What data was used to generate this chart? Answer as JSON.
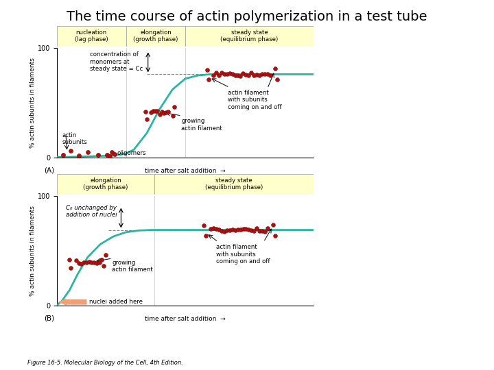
{
  "title": "The time course of actin polymerization in a test tube",
  "title_fontsize": 14,
  "title_fontweight": "normal",
  "background_color": "#ffffff",
  "curve_color": "#2ab5a0",
  "curve_linewidth": 2.0,
  "dot_color": "#aa1111",
  "yellow_bg": "#ffffcc",
  "dashed_color": "#888888",
  "salmon_color": "#f4a070",
  "panel_A": {
    "phases_A": [
      {
        "label": "nucleation\n(lag phase)",
        "xstart": 0.0,
        "xend": 0.27
      },
      {
        "label": "elongation\n(growth phase)",
        "xstart": 0.27,
        "xend": 0.5
      },
      {
        "label": "steady state\n(equilibrium phase)",
        "xstart": 0.5,
        "xend": 1.0
      }
    ],
    "curve_x": [
      0.0,
      0.05,
      0.1,
      0.15,
      0.2,
      0.25,
      0.27,
      0.3,
      0.35,
      0.4,
      0.45,
      0.5,
      0.55,
      0.6,
      0.7,
      0.8,
      1.0
    ],
    "curve_y": [
      0.0,
      0.3,
      0.6,
      1.0,
      1.5,
      2.5,
      3.5,
      7.0,
      22.0,
      44.0,
      62.0,
      72.0,
      75.0,
      76.0,
      76.0,
      76.0,
      76.0
    ],
    "Cc_level": 76.0,
    "ylabel": "% actin subunits in filaments",
    "xlabel": "time after salt addition"
  },
  "panel_B": {
    "phases_B": [
      {
        "label": "elongation\n(growth phase)",
        "xstart": 0.0,
        "xend": 0.38
      },
      {
        "label": "steady state\n(equilibrium phase)",
        "xstart": 0.38,
        "xend": 1.0
      }
    ],
    "curve_x": [
      0.0,
      0.02,
      0.05,
      0.08,
      0.12,
      0.17,
      0.22,
      0.27,
      0.32,
      0.37,
      0.42,
      0.47,
      0.55,
      0.7,
      0.85,
      1.0
    ],
    "curve_y": [
      0.0,
      4.0,
      14.0,
      28.0,
      44.0,
      56.0,
      63.0,
      67.0,
      68.5,
      69.0,
      69.0,
      69.0,
      69.0,
      69.0,
      69.0,
      69.0
    ],
    "Cc_level": 69.0,
    "ylabel": "% actin subunits in filaments",
    "xlabel": "time after salt addition"
  },
  "figure_caption": "Figure 16-5. Molecular Biology of the Cell, 4th Edition."
}
